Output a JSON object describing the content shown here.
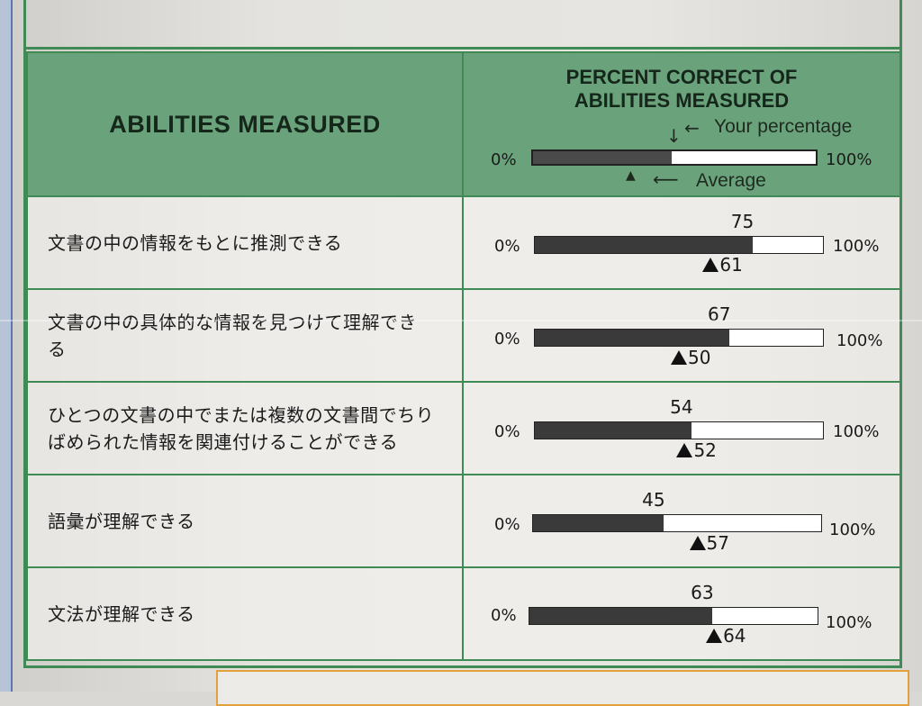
{
  "header": {
    "left_title": "ABILITIES MEASURED",
    "right_title_line1": "PERCENT CORRECT OF",
    "right_title_line2": "ABILITIES MEASURED",
    "legend_low": "0%",
    "legend_high": "100%",
    "legend_your": "Your percentage",
    "legend_average": "Average"
  },
  "rows": [
    {
      "label": "文書の中の情報をもとに推測できる",
      "value": "75",
      "average": "61"
    },
    {
      "label": "文書の中の具体的な情報を見つけて理解できる",
      "value": "67",
      "average": "50"
    },
    {
      "label": "ひとつの文書の中でまたは複数の文書間でちりばめられた情報を関連付けることができる",
      "value": "54",
      "average": "52"
    },
    {
      "label": "語彙が理解できる",
      "value": "45",
      "average": "57"
    },
    {
      "label": "文法が理解できる",
      "value": "63",
      "average": "64"
    }
  ],
  "scale": {
    "low": "0%",
    "high": "100%"
  },
  "chart_data": {
    "type": "bar",
    "categories": [
      "文書の中の情報をもとに推測できる",
      "文書の中の具体的な情報を見つけて理解できる",
      "ひとつの文書の中でまたは複数の文書間でちりばめられた情報を関連付けることができる",
      "語彙が理解できる",
      "文法が理解できる"
    ],
    "series": [
      {
        "name": "Your percentage",
        "values": [
          75,
          67,
          54,
          45,
          63
        ]
      },
      {
        "name": "Average",
        "values": [
          61,
          50,
          52,
          57,
          64
        ]
      }
    ],
    "ylim": [
      0,
      100
    ]
  },
  "colors": {
    "accent_green": "#3f8a55",
    "header_green": "#6aa37b",
    "bar_dark": "#3a3a3a"
  }
}
